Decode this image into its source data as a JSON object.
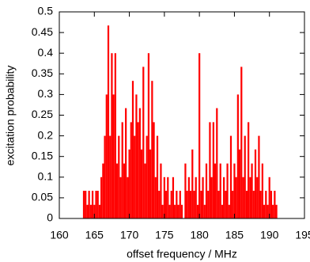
{
  "chart_data": {
    "type": "bar",
    "xlabel": "offset frequency / MHz",
    "ylabel": "excitation probability",
    "color": "#ff0000",
    "xlim": [
      160,
      195
    ],
    "xticks": [
      160,
      165,
      170,
      175,
      180,
      185,
      190,
      195
    ],
    "ylim": [
      0,
      0.5
    ],
    "yticks": [
      0,
      0.05,
      0.1,
      0.15,
      0.2,
      0.25,
      0.3,
      0.35,
      0.4,
      0.45,
      0.5
    ],
    "x": [
      163.5,
      163.75,
      164,
      164.25,
      164.5,
      164.75,
      165,
      165.25,
      165.5,
      165.75,
      166,
      166.25,
      166.5,
      166.75,
      167,
      167.25,
      167.5,
      167.75,
      168,
      168.25,
      168.5,
      168.75,
      169,
      169.25,
      169.5,
      169.75,
      170,
      170.25,
      170.5,
      170.75,
      171,
      171.25,
      171.5,
      171.75,
      172,
      172.25,
      172.5,
      172.75,
      173,
      173.25,
      173.5,
      173.75,
      174,
      174.25,
      174.5,
      174.75,
      175,
      175.25,
      175.5,
      175.75,
      176,
      176.25,
      176.5,
      176.75,
      177,
      177.25,
      177.5,
      177.75,
      178,
      178.25,
      178.5,
      178.75,
      179,
      179.25,
      179.5,
      179.75,
      180,
      180.25,
      180.5,
      180.75,
      181,
      181.25,
      181.5,
      181.75,
      182,
      182.25,
      182.5,
      182.75,
      183,
      183.25,
      183.5,
      183.75,
      184,
      184.25,
      184.5,
      184.75,
      185,
      185.25,
      185.5,
      185.75,
      186,
      186.25,
      186.5,
      186.75,
      187,
      187.25,
      187.5,
      187.75,
      188,
      188.25,
      188.5,
      188.75,
      189,
      189.25,
      189.5,
      189.75,
      190,
      190.25,
      190.5,
      190.75,
      191
    ],
    "values": [
      0.067,
      0.067,
      0.033,
      0.067,
      0.033,
      0.067,
      0.033,
      0.067,
      0.067,
      0.033,
      0.1,
      0.133,
      0.2,
      0.3,
      0.467,
      0.2,
      0.4,
      0.3,
      0.4,
      0.133,
      0.2,
      0.1,
      0.233,
      0.133,
      0.267,
      0.1,
      0.167,
      0.233,
      0.333,
      0.2,
      0.3,
      0.233,
      0.267,
      0.167,
      0.367,
      0.133,
      0.2,
      0.4,
      0.167,
      0.333,
      0.233,
      0.1,
      0.2,
      0.067,
      0.133,
      0.033,
      0.1,
      0.067,
      0.1,
      0.033,
      0.067,
      0.1,
      0.033,
      0.067,
      0.033,
      0.067,
      0.033,
      0,
      0.133,
      0.067,
      0.1,
      0.067,
      0.167,
      0.067,
      0.1,
      0.033,
      0.4,
      0.067,
      0.1,
      0.033,
      0.133,
      0.067,
      0.233,
      0.1,
      0.233,
      0.133,
      0.267,
      0.067,
      0.133,
      0.033,
      0.1,
      0.067,
      0.133,
      0.033,
      0.2,
      0.067,
      0.133,
      0.1,
      0.3,
      0.167,
      0.367,
      0.1,
      0.2,
      0.067,
      0.233,
      0.1,
      0.133,
      0.067,
      0.167,
      0.1,
      0.2,
      0.067,
      0.133,
      0.033,
      0.067,
      0.033,
      0.1,
      0.067,
      0.033,
      0.067,
      0.033
    ]
  }
}
